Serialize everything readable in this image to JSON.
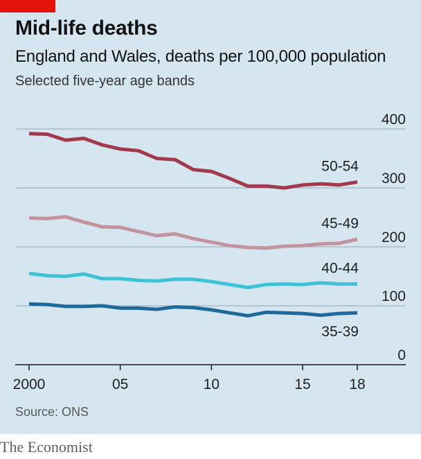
{
  "header": {
    "title": "Mid-life deaths",
    "subtitle": "England and Wales, deaths per 100,000 population",
    "subsubtitle": "Selected five-year age bands"
  },
  "footer": {
    "source": "Source: ONS",
    "brand": "The Economist"
  },
  "colors": {
    "background": "#d6e6f0",
    "accent_red": "#e3120b",
    "gridline": "#9fb2bf"
  },
  "chart_data": {
    "type": "line",
    "title": "Mid-life deaths",
    "subtitle": "England and Wales, deaths per 100,000 population",
    "xlabel": "",
    "ylabel": "",
    "x": [
      2000,
      2001,
      2002,
      2003,
      2004,
      2005,
      2006,
      2007,
      2008,
      2009,
      2010,
      2011,
      2012,
      2013,
      2014,
      2015,
      2016,
      2017,
      2018
    ],
    "xlim": [
      2000,
      2018
    ],
    "ylim": [
      0,
      400
    ],
    "xticks": [
      2000,
      2005,
      2010,
      2015,
      2018
    ],
    "xtick_labels": [
      "2000",
      "05",
      "10",
      "15",
      "18"
    ],
    "yticks": [
      0,
      100,
      200,
      300,
      400
    ],
    "ytick_labels": [
      "0",
      "100",
      "200",
      "300",
      "400"
    ],
    "grid": true,
    "series": [
      {
        "name": "50-54",
        "color": "#a03a4c",
        "values": [
          392,
          391,
          381,
          384,
          373,
          366,
          363,
          350,
          348,
          331,
          328,
          316,
          303,
          303,
          300,
          305,
          307,
          305,
          310
        ]
      },
      {
        "name": "45-49",
        "color": "#c3939f",
        "values": [
          249,
          248,
          251,
          242,
          234,
          233,
          226,
          219,
          222,
          214,
          208,
          202,
          199,
          198,
          201,
          202,
          205,
          206,
          213
        ]
      },
      {
        "name": "40-44",
        "color": "#3ec3d6",
        "values": [
          155,
          151,
          150,
          154,
          146,
          146,
          143,
          142,
          145,
          145,
          141,
          136,
          131,
          136,
          137,
          136,
          139,
          137,
          137
        ]
      },
      {
        "name": "35-39",
        "color": "#1f6a99",
        "values": [
          103,
          102,
          99,
          99,
          100,
          96,
          96,
          94,
          98,
          97,
          93,
          88,
          83,
          89,
          88,
          87,
          84,
          87,
          88
        ]
      }
    ]
  }
}
